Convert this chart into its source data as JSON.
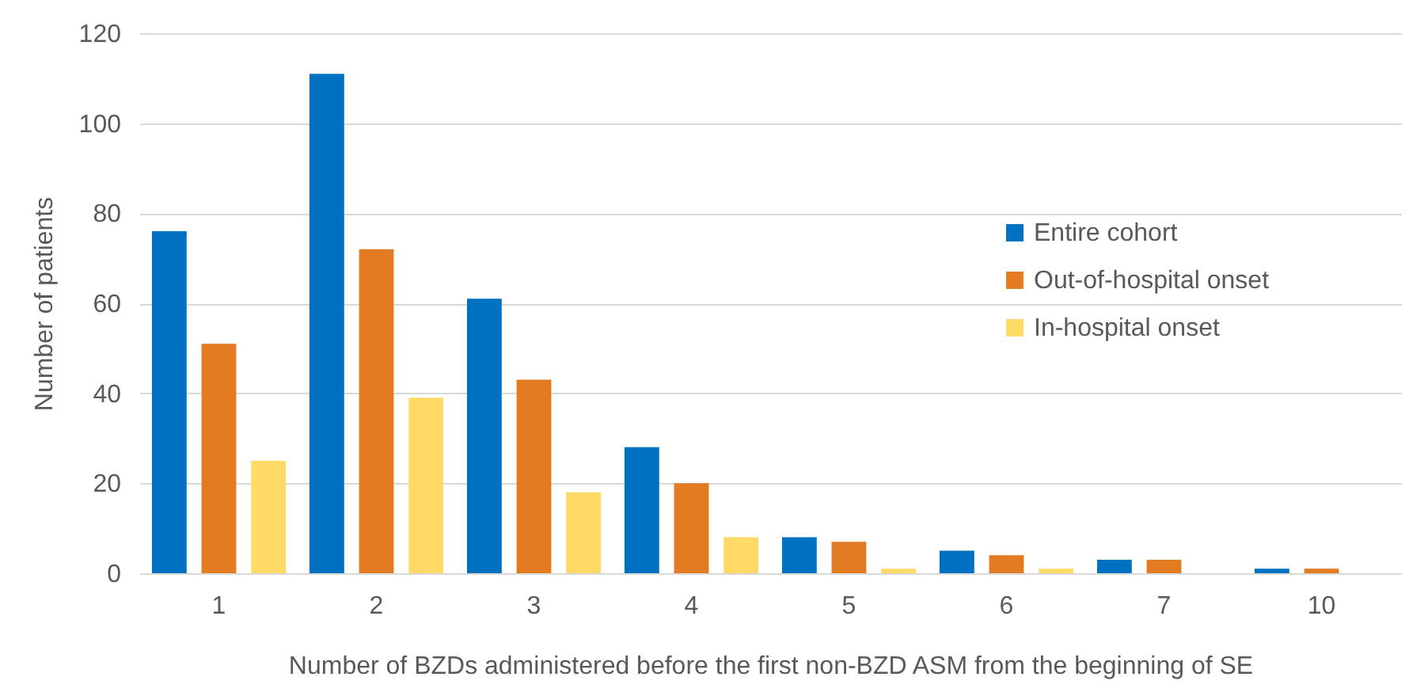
{
  "chart_data": {
    "type": "bar",
    "xlabel": "Number of BZDs administered before the first non-BZD ASM from the beginning of SE",
    "ylabel": "Number of patients",
    "categories": [
      "1",
      "2",
      "3",
      "4",
      "5",
      "6",
      "7",
      "10"
    ],
    "series": [
      {
        "name": "Entire cohort",
        "color": "#0070c0",
        "values": [
          76,
          111,
          61,
          28,
          8,
          5,
          3,
          1
        ]
      },
      {
        "name": "Out-of-hospital onset",
        "color": "#e27b22",
        "values": [
          51,
          72,
          43,
          20,
          7,
          4,
          3,
          1
        ]
      },
      {
        "name": "In-hospital onset",
        "color": "#ffd966",
        "values": [
          25,
          39,
          18,
          8,
          1,
          1,
          0,
          0
        ]
      }
    ],
    "ylim": [
      0,
      120
    ],
    "yticks": [
      0,
      20,
      40,
      60,
      80,
      100,
      120
    ],
    "grid": "y",
    "legend": "right"
  }
}
